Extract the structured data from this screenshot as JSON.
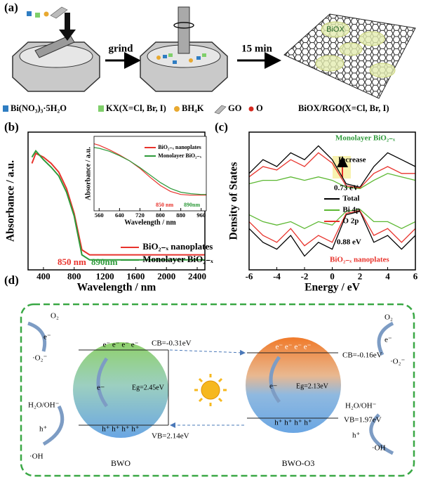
{
  "panel_labels": [
    "(a)",
    "(b)",
    "(c)",
    "(d)"
  ],
  "panel_a": {
    "steps": [
      "grind",
      "15 min"
    ],
    "product_label": "BiOX",
    "legend": [
      "Bi(NO₃)₃·5H₂O",
      "KX(X=Cl, Br, I)",
      "BH₄K",
      "GO",
      "O",
      "BiOX/RGO(X=Cl, Br, I)"
    ]
  },
  "chart_data": [
    {
      "type": "line",
      "xlabel": "Wavelength / nm",
      "ylabel": "Absorbance / a.u.",
      "x": [
        250,
        300,
        400,
        500,
        600,
        700,
        800,
        900,
        1000,
        1200,
        1600,
        2000,
        2500
      ],
      "xlim": [
        200,
        2500
      ],
      "xticks": [
        400,
        800,
        1200,
        1600,
        2000,
        2400
      ],
      "ylim": [
        0,
        1.1
      ],
      "legend": "lower right",
      "series": [
        {
          "name": "BiO₂₋ₓ nanoplates",
          "color": "#e8332c",
          "values": [
            0.85,
            0.93,
            0.9,
            0.85,
            0.78,
            0.65,
            0.45,
            0.16,
            0.12,
            0.12,
            0.12,
            0.12,
            0.12
          ]
        },
        {
          "name": "Monolayer BiO₂₋ₓ",
          "color": "#2e9a3a",
          "values": [
            0.9,
            0.95,
            0.88,
            0.82,
            0.75,
            0.62,
            0.43,
            0.12,
            0.08,
            0.08,
            0.08,
            0.08,
            0.08
          ]
        }
      ],
      "annotations": [
        {
          "text": "850 nm",
          "color": "#e8332c"
        },
        {
          "text": "890nm",
          "color": "#2e9a3a"
        }
      ]
    },
    {
      "type": "line",
      "xlabel": "Wavelength / nm",
      "ylabel": "Absorbance / a.u.",
      "x": [
        540,
        560,
        600,
        640,
        680,
        720,
        760,
        800,
        840,
        880,
        920,
        960,
        980
      ],
      "xlim": [
        540,
        980
      ],
      "xticks": [
        560,
        640,
        720,
        800,
        880,
        960
      ],
      "ylim": [
        0,
        1
      ],
      "legend": "upper right",
      "series": [
        {
          "name": "BiO₂₋ₓ nanoplates",
          "color": "#e8332c",
          "values": [
            0.9,
            0.88,
            0.82,
            0.75,
            0.67,
            0.57,
            0.45,
            0.34,
            0.26,
            0.22,
            0.21,
            0.21,
            0.21
          ]
        },
        {
          "name": "Monolayer BiO₂₋ₓ",
          "color": "#2e9a3a",
          "values": [
            0.85,
            0.84,
            0.8,
            0.74,
            0.67,
            0.58,
            0.48,
            0.38,
            0.3,
            0.25,
            0.23,
            0.22,
            0.22
          ]
        }
      ],
      "annotations": [
        {
          "text": "850 nm",
          "color": "#e8332c"
        },
        {
          "text": "890nm",
          "color": "#2e9a3a"
        }
      ]
    },
    {
      "type": "line",
      "xlabel": "Energy / eV",
      "ylabel": "Density of States",
      "x": [
        -6,
        -5,
        -4,
        -3,
        -2,
        -1,
        0,
        1,
        2,
        3,
        4,
        5,
        6
      ],
      "xlim": [
        -6,
        6
      ],
      "xticks": [
        -6,
        -4,
        -2,
        0,
        2,
        4,
        6
      ],
      "ylim": [
        -10,
        10
      ],
      "legend": "center right",
      "series": [
        {
          "name": "Total",
          "color": "#000000",
          "values": [
            4,
            6,
            5,
            7,
            6,
            8,
            6,
            2.5,
            2,
            5,
            7,
            6,
            5
          ]
        },
        {
          "name": "Bi 4p",
          "color": "#5cb832",
          "values": [
            2.5,
            3,
            3,
            3.5,
            3,
            3.5,
            3,
            2,
            1.8,
            3,
            4,
            3.5,
            3
          ]
        },
        {
          "name": "O 2p",
          "color": "#e8332c",
          "values": [
            3.5,
            5,
            4.5,
            6,
            5,
            7,
            5.5,
            2.2,
            1.9,
            4,
            5,
            4,
            4
          ]
        },
        {
          "color": "#000000",
          "values": [
            -4,
            -6,
            -7,
            -5,
            -8,
            -6,
            -7,
            -2,
            -1.5,
            -6,
            -5,
            -7,
            -5
          ]
        },
        {
          "color": "#5cb832",
          "values": [
            -2,
            -3,
            -3.5,
            -3,
            -4,
            -3,
            -3.5,
            -1.5,
            -1.2,
            -3,
            -3,
            -4,
            -3
          ]
        },
        {
          "color": "#e8332c",
          "values": [
            -3,
            -5,
            -6,
            -4,
            -6.5,
            -5,
            -6,
            -1.8,
            -1.4,
            -5,
            -4,
            -6,
            -4
          ]
        }
      ],
      "annotations": [
        {
          "text": "Monolayer BiO₂₋ₓ",
          "color": "#2e9a3a"
        },
        {
          "text": "Increase",
          "color": "#000000"
        },
        {
          "text": "0.73 eV",
          "color": "#000000"
        },
        {
          "text": "0.88 eV",
          "color": "#000000"
        },
        {
          "text": "BiO₂₋ₓ nanoplates",
          "color": "#e8332c"
        }
      ]
    }
  ],
  "panel_d": {
    "left_species": [
      "O₂",
      "e⁻",
      "·O₂⁻",
      "H₂O/OH⁻",
      "h⁺",
      "·OH"
    ],
    "right_species": [
      "O₂",
      "e⁻",
      "·O₂⁻",
      "H₂O/OH⁻",
      "h⁺",
      "·OH"
    ],
    "semiconductors": [
      {
        "name": "BWO",
        "cb": "CB=-0.31eV",
        "eg": "Eg=2.45eV",
        "vb": "VB=2.14eV",
        "electrons": "e⁻ e⁻ e⁻ e⁻",
        "holes": "h⁺ h⁺ h⁺ h⁺",
        "inner": "e−"
      },
      {
        "name": "BWO-O3",
        "cb": "CB=-0.16eV",
        "eg": "Eg=2.13eV",
        "vb": "VB=1.97eV",
        "electrons": "e⁻ e⁻ e⁻ e⁻",
        "holes": "h⁺ h⁺ h⁺ h⁺",
        "inner": "e−"
      }
    ]
  }
}
